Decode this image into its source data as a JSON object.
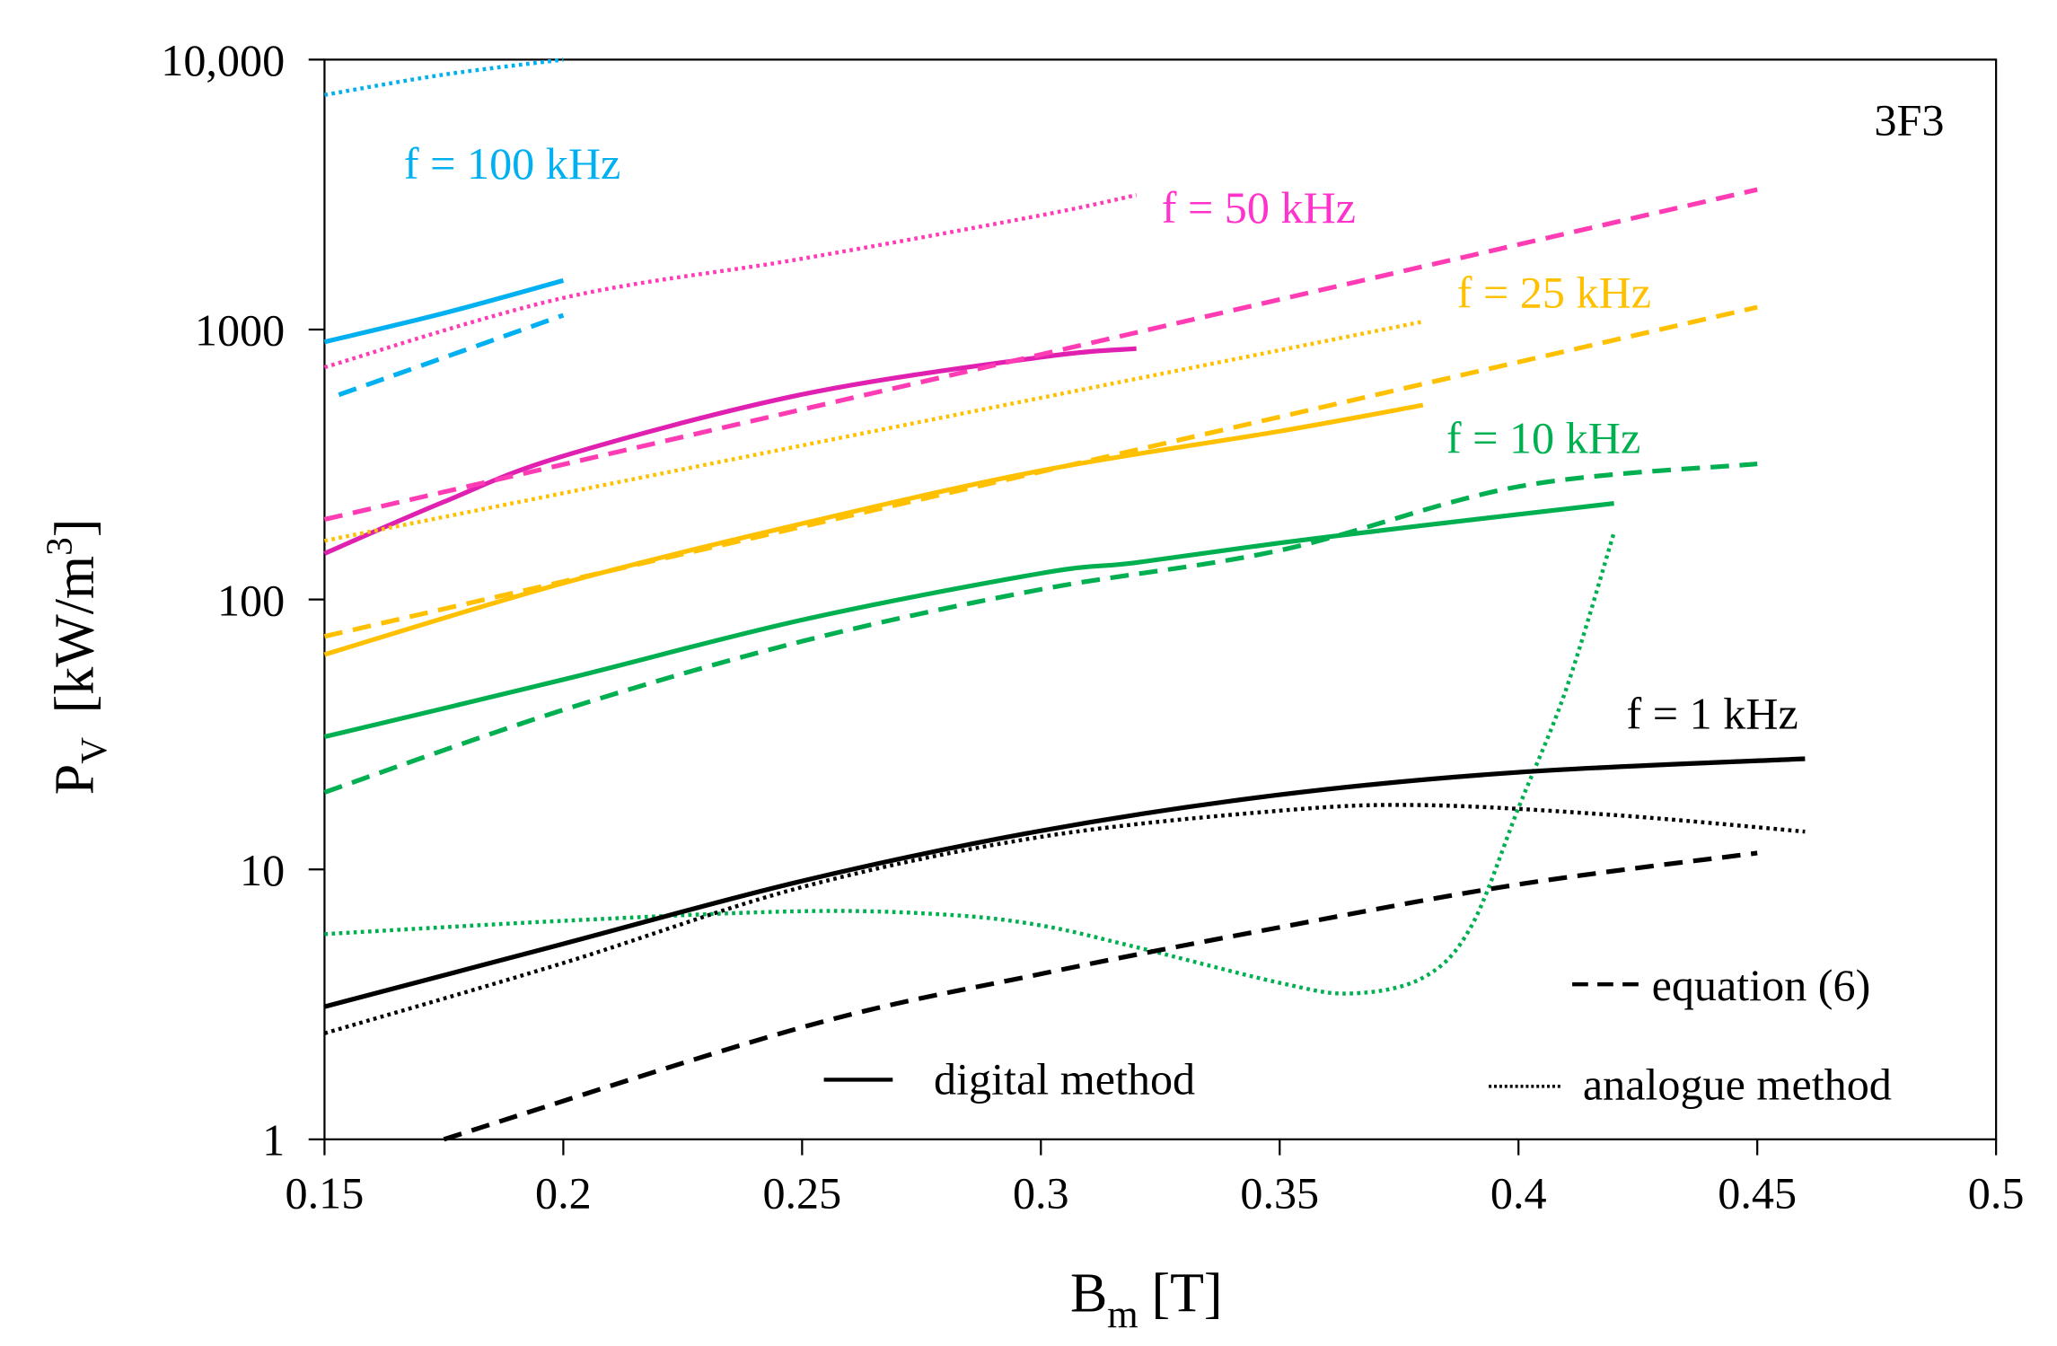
{
  "chart_data": {
    "type": "line",
    "title": "",
    "annotation": "3F3",
    "xlabel": "B",
    "xlabel_sub": "m",
    "xlabel_unit": "[T]",
    "ylabel": "P",
    "ylabel_sub": "V",
    "ylabel_unit": "[kW/m",
    "ylabel_sup": "3",
    "ylabel_close": "]",
    "xlim": [
      0.15,
      0.5
    ],
    "ylim": [
      1,
      10000
    ],
    "yscale": "log",
    "x_ticks": [
      "0.15",
      "0.2",
      "0.25",
      "0.3",
      "0.35",
      "0.4",
      "0.45",
      "0.5"
    ],
    "x_tick_values": [
      0.15,
      0.2,
      0.25,
      0.3,
      0.35,
      0.4,
      0.45,
      0.5
    ],
    "y_ticks": [
      "1",
      "10",
      "100",
      "1000",
      "10,000"
    ],
    "y_tick_values": [
      1,
      10,
      100,
      1000,
      10000
    ],
    "legend": {
      "placement": "bottom-right",
      "entries": [
        {
          "label": "digital method",
          "style": "solid"
        },
        {
          "label": "analogue method",
          "style": "dotted"
        },
        {
          "label": "equation (6)",
          "style": "dashed"
        }
      ]
    },
    "frequency_labels": [
      {
        "text": "f = 100 kHz",
        "color": "#00b0f0"
      },
      {
        "text": "f = 50 kHz",
        "color": "#ff33cc"
      },
      {
        "text": "f = 25 kHz",
        "color": "#ffc000"
      },
      {
        "text": "f = 10 kHz",
        "color": "#00b050"
      },
      {
        "text": "f = 1 kHz",
        "color": "#000000"
      }
    ],
    "series": [
      {
        "name": "100 kHz digital",
        "style": "solid",
        "color": "#00b0f0",
        "x": [
          0.15,
          0.175,
          0.2
        ],
        "y": [
          900,
          1150,
          1520
        ]
      },
      {
        "name": "100 kHz equation (6)",
        "style": "dashed",
        "color": "#00b0f0",
        "x": [
          0.153,
          0.2
        ],
        "y": [
          573,
          1130
        ]
      },
      {
        "name": "100 kHz analogue",
        "style": "dotted",
        "color": "#00b0f0",
        "x": [
          0.15,
          0.175,
          0.2
        ],
        "y": [
          7400,
          8800,
          10000
        ]
      },
      {
        "name": "50 kHz digital",
        "style": "solid",
        "color": "#e020b0",
        "x": [
          0.15,
          0.175,
          0.2,
          0.25,
          0.3,
          0.32
        ],
        "y": [
          148,
          230,
          340,
          575,
          790,
          850
        ]
      },
      {
        "name": "50 kHz equation (6)",
        "style": "dashed",
        "color": "#ff3cb4",
        "x": [
          0.15,
          0.45
        ],
        "y": [
          198,
          3300
        ]
      },
      {
        "name": "50 kHz analogue",
        "style": "dotted",
        "color": "#ff3cb4",
        "x": [
          0.15,
          0.2,
          0.25,
          0.3,
          0.32
        ],
        "y": [
          725,
          1310,
          1830,
          2650,
          3150
        ]
      },
      {
        "name": "25 kHz digital",
        "style": "solid",
        "color": "#ffc000",
        "x": [
          0.15,
          0.2,
          0.25,
          0.3,
          0.35,
          0.38
        ],
        "y": [
          62.5,
          115,
          191,
          300,
          420,
          525
        ]
      },
      {
        "name": "25 kHz equation (6)",
        "style": "dashed",
        "color": "#ffc000",
        "x": [
          0.15,
          0.45
        ],
        "y": [
          73,
          1210
        ]
      },
      {
        "name": "25 kHz analogue",
        "style": "dotted",
        "color": "#ffc000",
        "x": [
          0.15,
          0.38
        ],
        "y": [
          165,
          1070
        ]
      },
      {
        "name": "10 kHz digital",
        "style": "solid",
        "color": "#00b050",
        "x": [
          0.15,
          0.2,
          0.25,
          0.3,
          0.32,
          0.35,
          0.38,
          0.42
        ],
        "y": [
          31,
          50.5,
          84,
          125,
          137,
          162,
          188,
          227
        ]
      },
      {
        "name": "10 kHz equation (6)",
        "style": "dashed",
        "color": "#00b050",
        "x": [
          0.15,
          0.2,
          0.25,
          0.3,
          0.35,
          0.4,
          0.45
        ],
        "y": [
          19.3,
          39,
          70,
          109,
          152,
          262,
          318
        ]
      },
      {
        "name": "10 kHz analogue",
        "style": "dotted",
        "color": "#00b050",
        "x": [
          0.15,
          0.2,
          0.25,
          0.28,
          0.3,
          0.32,
          0.35,
          0.365,
          0.38,
          0.39,
          0.4,
          0.41,
          0.42
        ],
        "y": [
          5.76,
          6.45,
          7.0,
          6.8,
          6.2,
          5.15,
          3.8,
          3.47,
          3.97,
          6.1,
          16.9,
          46.6,
          177
        ]
      },
      {
        "name": "1 kHz digital",
        "style": "solid",
        "color": "#000000",
        "x": [
          0.15,
          0.2,
          0.25,
          0.3,
          0.35,
          0.4,
          0.46
        ],
        "y": [
          3.1,
          5.3,
          9.06,
          13.9,
          18.9,
          22.9,
          25.7
        ]
      },
      {
        "name": "1 kHz analogue",
        "style": "dotted",
        "color": "#000000",
        "x": [
          0.15,
          0.2,
          0.25,
          0.3,
          0.35,
          0.38,
          0.42,
          0.46
        ],
        "y": [
          2.47,
          4.5,
          8.6,
          13.2,
          16.5,
          17.3,
          15.9,
          13.8
        ]
      },
      {
        "name": "1 kHz equation (6)",
        "style": "dashed",
        "color": "#000000",
        "x": [
          0.175,
          0.25,
          0.3,
          0.35,
          0.4,
          0.45
        ],
        "y": [
          1,
          2.6,
          4.1,
          6.1,
          8.8,
          11.5
        ]
      }
    ]
  }
}
